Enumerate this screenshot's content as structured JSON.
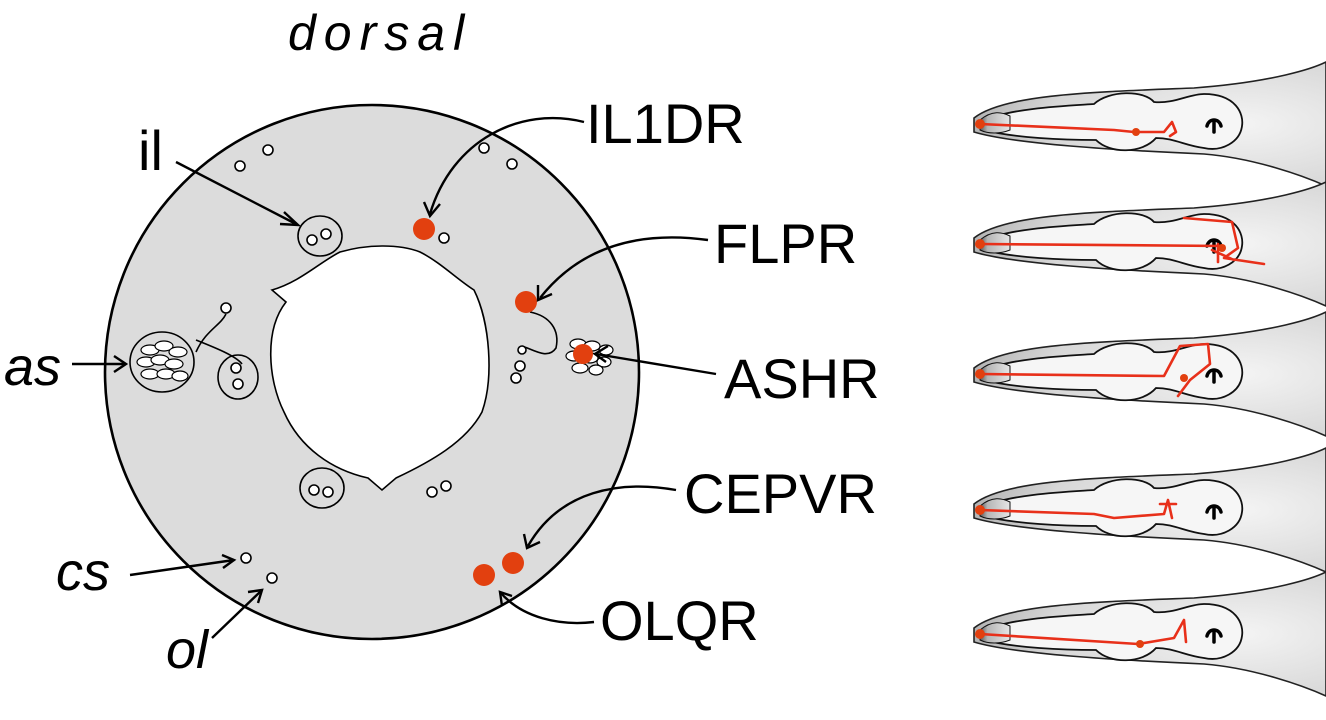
{
  "diagram": {
    "title": "dorsal",
    "structure_labels": [
      {
        "id": "il",
        "text": "il"
      },
      {
        "id": "as",
        "text": "as"
      },
      {
        "id": "cs",
        "text": "cs"
      },
      {
        "id": "ol",
        "text": "ol"
      }
    ],
    "neurons": [
      {
        "id": "il1dr",
        "text": "IL1DR"
      },
      {
        "id": "flpr",
        "text": "FLPR"
      },
      {
        "id": "ashr",
        "text": "ASHR"
      },
      {
        "id": "cepvr",
        "text": "CEPVR"
      },
      {
        "id": "olqr",
        "text": "OLQR"
      }
    ],
    "colors": {
      "highlight": "#e2400f",
      "tissue": "#dcdcdc",
      "trace": "#e8301a"
    }
  }
}
